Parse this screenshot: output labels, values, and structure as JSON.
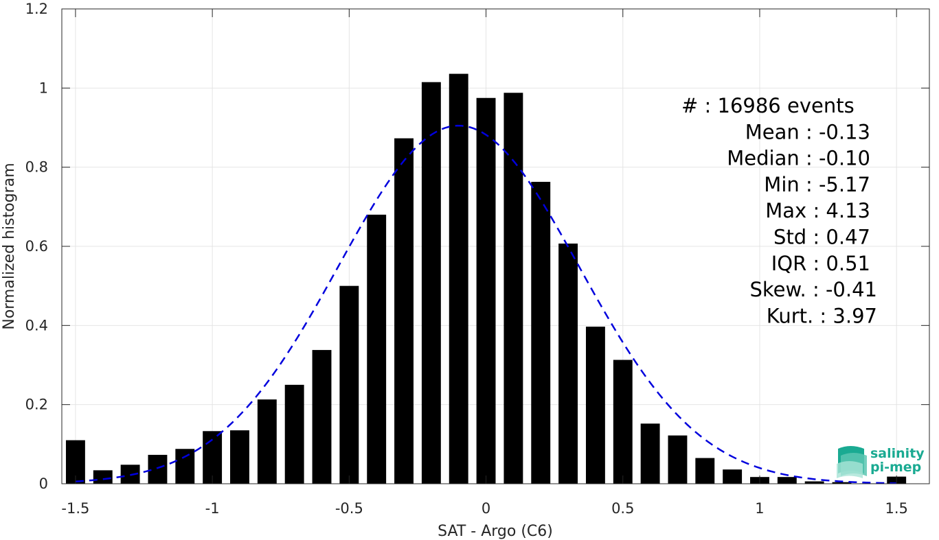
{
  "chart_data": {
    "type": "bar",
    "xlabel": "SAT - Argo (C6)",
    "ylabel": "Normalized histogram",
    "xlim": [
      -1.55,
      1.62
    ],
    "ylim": [
      0,
      1.2
    ],
    "xticks": [
      -1.5,
      -1,
      -0.5,
      0,
      0.5,
      1,
      1.5
    ],
    "xtick_labels": [
      "-1.5",
      "-1",
      "-0.5",
      "0",
      "0.5",
      "1",
      "1.5"
    ],
    "yticks": [
      0,
      0.2,
      0.4,
      0.6,
      0.8,
      1,
      1.2
    ],
    "ytick_labels": [
      "0",
      "0.2",
      "0.4",
      "0.6",
      "0.8",
      "1",
      "1.2"
    ],
    "grid": true,
    "series": [
      {
        "type": "bar",
        "color": "#000000",
        "x": [
          -1.5,
          -1.4,
          -1.3,
          -1.2,
          -1.1,
          -1.0,
          -0.9,
          -0.8,
          -0.7,
          -0.6,
          -0.5,
          -0.4,
          -0.3,
          -0.2,
          -0.1,
          0.0,
          0.1,
          0.2,
          0.3,
          0.4,
          0.5,
          0.6,
          0.7,
          0.8,
          0.9,
          1.0,
          1.1,
          1.2,
          1.3,
          1.4,
          1.5
        ],
        "values": [
          0.11,
          0.034,
          0.048,
          0.073,
          0.088,
          0.133,
          0.135,
          0.213,
          0.25,
          0.338,
          0.5,
          0.68,
          0.873,
          1.015,
          1.036,
          0.975,
          0.988,
          0.763,
          0.607,
          0.397,
          0.313,
          0.152,
          0.122,
          0.065,
          0.036,
          0.017,
          0.017,
          0.006,
          0.004,
          0.001,
          0.018
        ]
      },
      {
        "type": "line",
        "style": "dashed",
        "color": "#0000dd",
        "mean": -0.1,
        "std": 0.44,
        "peak": 0.905,
        "x_range": [
          -1.5,
          1.5
        ]
      }
    ],
    "annotations": [
      "#  : 16986 events",
      "Mean : -0.13",
      "Median : -0.10",
      "Min : -5.17",
      "Max : 4.13",
      "Std : 0.47",
      "IQR : 0.51",
      "Skew. : -0.41",
      "Kurt. : 3.97"
    ]
  },
  "logo": {
    "line1": "salinity",
    "line2": "pi-mep",
    "icon": "wave-layers-icon"
  }
}
